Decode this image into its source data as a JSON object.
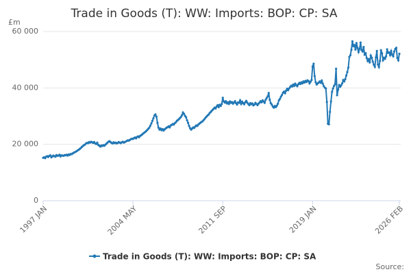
{
  "chart_data": {
    "type": "line",
    "title": "Trade in Goods (T): WW: Imports: BOP: CP: SA",
    "y_label": "£m",
    "source": "Source:",
    "categories": [
      "1997 JAN",
      null,
      null,
      null,
      null,
      null,
      null,
      null,
      null,
      null,
      null,
      null,
      null,
      null,
      null,
      null,
      null,
      null,
      null,
      null,
      null,
      null,
      null,
      null,
      null,
      null,
      null,
      null,
      null,
      null,
      null,
      null,
      null,
      null,
      null,
      null,
      null,
      null,
      null,
      null,
      null,
      null,
      null,
      null,
      null,
      null,
      null,
      null,
      null,
      null,
      null,
      null,
      null,
      null,
      null,
      null,
      null,
      null,
      null,
      null,
      null,
      null,
      null,
      null,
      null,
      null,
      null,
      null,
      null,
      null,
      null,
      null,
      null,
      null,
      null,
      null,
      null,
      null,
      null,
      null,
      null,
      null,
      null,
      null,
      null,
      null,
      null,
      null,
      "2004 MAY",
      null,
      null,
      null,
      null,
      null,
      null,
      null,
      null,
      null,
      null,
      null,
      null,
      null,
      null,
      null,
      null,
      null,
      null,
      null,
      null,
      null,
      null,
      null,
      null,
      null,
      null,
      null,
      null,
      null,
      null,
      null,
      null,
      null,
      null,
      null,
      null,
      null,
      null,
      null,
      null,
      null,
      null,
      null,
      null,
      null,
      null,
      null,
      null,
      null,
      null,
      null,
      null,
      null,
      null,
      null,
      null,
      null,
      null,
      null,
      null,
      null,
      null,
      null,
      null,
      null,
      null,
      null,
      null,
      null,
      null,
      null,
      null,
      null,
      null,
      null,
      null,
      null,
      null,
      null,
      null,
      null,
      null,
      null,
      null,
      null,
      null,
      null,
      "2011 SEP",
      null,
      null,
      null,
      null,
      null,
      null,
      null,
      null,
      null,
      null,
      null,
      null,
      null,
      null,
      null,
      null,
      null,
      null,
      null,
      null,
      null,
      null,
      null,
      null,
      null,
      null,
      null,
      null,
      null,
      null,
      null,
      null,
      null,
      null,
      null,
      null,
      null,
      null,
      null,
      null,
      null,
      null,
      null,
      null,
      null,
      null,
      null,
      null,
      null,
      null,
      null,
      null,
      null,
      null,
      null,
      null,
      null,
      null,
      null,
      null,
      null,
      null,
      null,
      null,
      null,
      null,
      null,
      null,
      null,
      null,
      null,
      null,
      null,
      null,
      null,
      null,
      null,
      null,
      null,
      null,
      null,
      null,
      null,
      null,
      null,
      null,
      null,
      "2019 JAN",
      null,
      null,
      null,
      null,
      null,
      null,
      null,
      null,
      null,
      null,
      null,
      null,
      null,
      null,
      null,
      null,
      null,
      null,
      null,
      null,
      null,
      null,
      null,
      null,
      null,
      null,
      null,
      null,
      null,
      null,
      null,
      null,
      null,
      null,
      null,
      null,
      null,
      null,
      null,
      null,
      null,
      null,
      null,
      null,
      null,
      null,
      null,
      null,
      null,
      null,
      null,
      null,
      null,
      null,
      null,
      null,
      null,
      null,
      null,
      null,
      null,
      null,
      null,
      null,
      null,
      null,
      null,
      null,
      null,
      null,
      null,
      null,
      null,
      null,
      null,
      null,
      null,
      null,
      null,
      null,
      null,
      null,
      null,
      null,
      "2026 FEB"
    ],
    "series": [
      {
        "name": "Trade in Goods (T): WW: Imports: BOP: CP: SA",
        "color": "#2278b5",
        "values": [
          15200,
          15400,
          15100,
          15600,
          15800,
          15500,
          15900,
          16100,
          15400,
          15700,
          16000,
          15800,
          15600,
          16200,
          15900,
          16000,
          16300,
          15700,
          16100,
          16000,
          15900,
          16200,
          16100,
          16300,
          16000,
          16400,
          16200,
          16600,
          16500,
          16800,
          17000,
          17200,
          17400,
          17600,
          17900,
          18100,
          18400,
          18700,
          19100,
          19400,
          19700,
          19900,
          20300,
          20500,
          20400,
          20800,
          20600,
          20900,
          20700,
          20500,
          20800,
          20300,
          20100,
          20600,
          19800,
          19500,
          19200,
          19600,
          19400,
          19700,
          19500,
          19900,
          20200,
          20600,
          20900,
          21100,
          20800,
          20500,
          20300,
          20700,
          20400,
          20600,
          20300,
          20500,
          20800,
          20600,
          20400,
          20700,
          20900,
          20600,
          20800,
          21000,
          21200,
          21400,
          21300,
          21600,
          21800,
          22000,
          21900,
          22200,
          22400,
          22100,
          22600,
          22800,
          22500,
          23000,
          23200,
          23500,
          23800,
          24100,
          24400,
          24700,
          25100,
          25500,
          25900,
          26600,
          27400,
          28300,
          29200,
          30200,
          30600,
          29800,
          27600,
          25900,
          25200,
          25600,
          25000,
          25400,
          24900,
          25300,
          25600,
          25900,
          26100,
          26400,
          26000,
          26700,
          26900,
          27200,
          27000,
          27500,
          27800,
          28300,
          28600,
          28900,
          29300,
          29700,
          30300,
          31300,
          30800,
          30100,
          29600,
          28500,
          27600,
          26500,
          25700,
          25200,
          25600,
          26000,
          25800,
          26300,
          26700,
          26500,
          27000,
          27300,
          27600,
          27900,
          28100,
          28500,
          28900,
          29400,
          29800,
          30200,
          30500,
          31000,
          31400,
          31800,
          32200,
          32600,
          33000,
          32700,
          33400,
          33900,
          33200,
          34000,
          33600,
          34300,
          36500,
          35200,
          34800,
          35300,
          34500,
          34900,
          34300,
          35200,
          34700,
          35000,
          34400,
          34800,
          35300,
          34600,
          34100,
          34900,
          34700,
          35600,
          34300,
          35100,
          34600,
          34200,
          34900,
          35400,
          34800,
          34300,
          33900,
          34600,
          34200,
          34500,
          33800,
          34100,
          34700,
          34300,
          33900,
          34400,
          34800,
          35300,
          34900,
          35600,
          35200,
          34700,
          35800,
          36400,
          37000,
          38200,
          35800,
          34600,
          34100,
          33400,
          33000,
          33600,
          33200,
          33700,
          34400,
          35600,
          36100,
          36900,
          37500,
          38300,
          38700,
          38100,
          39000,
          39700,
          39200,
          39800,
          40300,
          40800,
          40500,
          41200,
          40700,
          41500,
          41000,
          40600,
          41300,
          41800,
          41400,
          42000,
          41600,
          42300,
          41900,
          42500,
          42100,
          42700,
          42400,
          41600,
          42200,
          42800,
          47600,
          48600,
          44200,
          42000,
          41200,
          41600,
          41900,
          42300,
          41800,
          42600,
          41500,
          40600,
          40100,
          39800,
          35000,
          27300,
          27100,
          31500,
          35200,
          38600,
          39800,
          40700,
          41300,
          46800,
          37400,
          39400,
          41000,
          40400,
          40900,
          41600,
          42800,
          42300,
          43100,
          44400,
          45600,
          47200,
          51000,
          51600,
          53500,
          56500,
          54800,
          55200,
          53600,
          55900,
          54200,
          52700,
          53800,
          56100,
          53400,
          52900,
          54500,
          51800,
          52300,
          50600,
          49500,
          50200,
          49000,
          51500,
          50700,
          49300,
          48200,
          47500,
          50800,
          53100,
          48300,
          47400,
          49600,
          53400,
          52300,
          49800,
          50700,
          50300,
          51200,
          53700,
          52400,
          52600,
          51600,
          53100,
          51800,
          51200,
          52900,
          53800,
          54200,
          50600,
          49800,
          52100
        ]
      }
    ],
    "ylim": [
      0,
      60000
    ],
    "yticks": [
      0,
      {
        "value": 20000,
        "label": "20 000"
      },
      {
        "value": 40000,
        "label": "40 000"
      },
      {
        "value": 60000,
        "label": "60 000"
      }
    ],
    "grid": true
  }
}
